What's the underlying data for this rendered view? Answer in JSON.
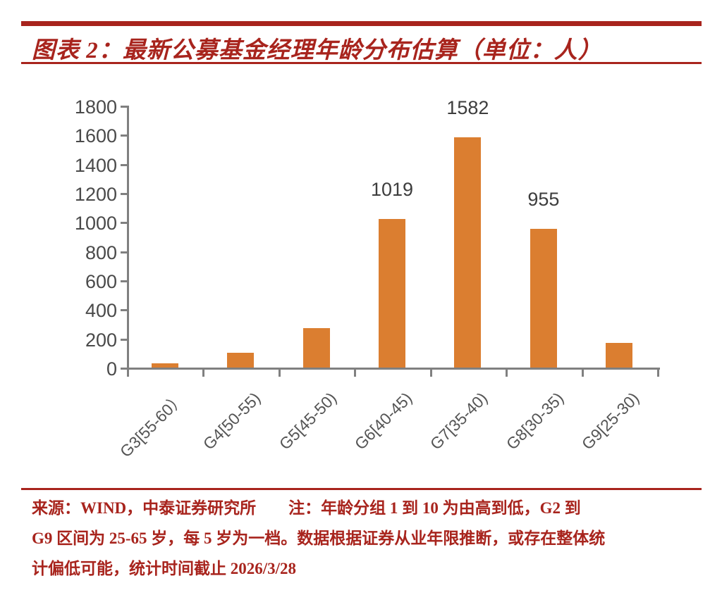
{
  "header": {
    "title": "图表 2：最新公募基金经理年龄分布估算（单位：人）"
  },
  "chart_data": {
    "type": "bar",
    "title": "最新公募基金经理年龄分布估算",
    "unit": "人",
    "categories": [
      "G3[55-60）",
      "G4[50-55)",
      "G5[45-50)",
      "G6[40-45)",
      "G7[35-40)",
      "G8[30-35)",
      "G9[25-30)"
    ],
    "values": [
      30,
      100,
      270,
      1019,
      1582,
      955,
      170
    ],
    "bar_labels": [
      "",
      "",
      "",
      "1019",
      "1582",
      "955",
      ""
    ],
    "xlabel": "",
    "ylabel": "",
    "ylim": [
      0,
      1800
    ],
    "ytick_step": 200,
    "grid": false,
    "legend": "none",
    "bar_color": "#DB7E30",
    "axis_color": "#808080"
  },
  "footer": {
    "lines": [
      "来源：WIND，中泰证券研究所　　注：年龄分组 1 到 10 为由高到低，G2 到",
      "G9 区间为 25-65 岁，每 5 岁为一档。数据根据证券从业年限推断，或存在整体统",
      "计偏低可能，统计时间截止 2026/3/28"
    ]
  },
  "colors": {
    "accent_red": "#A8241D",
    "bar_orange": "#DB7E30",
    "axis_gray": "#808080",
    "label_gray": "#4a4a4a"
  }
}
